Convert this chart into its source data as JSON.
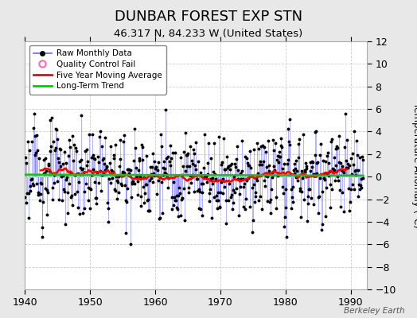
{
  "title": "DUNBAR FOREST EXP STN",
  "subtitle": "46.317 N, 84.233 W (United States)",
  "ylabel_right": "Temperature Anomaly (°C)",
  "watermark": "Berkeley Earth",
  "xlim": [
    1940,
    1992.5
  ],
  "ylim": [
    -10,
    12
  ],
  "yticks": [
    -10,
    -8,
    -6,
    -4,
    -2,
    0,
    2,
    4,
    6,
    8,
    10,
    12
  ],
  "xticks": [
    1940,
    1950,
    1960,
    1970,
    1980,
    1990
  ],
  "fig_bg_color": "#e8e8e8",
  "plot_bg_color": "#ffffff",
  "raw_color": "#6666ff",
  "raw_dot_color": "#000000",
  "ma_color": "#ff0000",
  "trend_color": "#00cc00",
  "qc_fail_color": "#ff69b4",
  "legend_entries": [
    "Raw Monthly Data",
    "Quality Control Fail",
    "Five Year Moving Average",
    "Long-Term Trend"
  ],
  "title_fontsize": 13,
  "subtitle_fontsize": 9.5,
  "ylabel_fontsize": 8.5,
  "tick_fontsize": 9,
  "watermark_fontsize": 7.5
}
